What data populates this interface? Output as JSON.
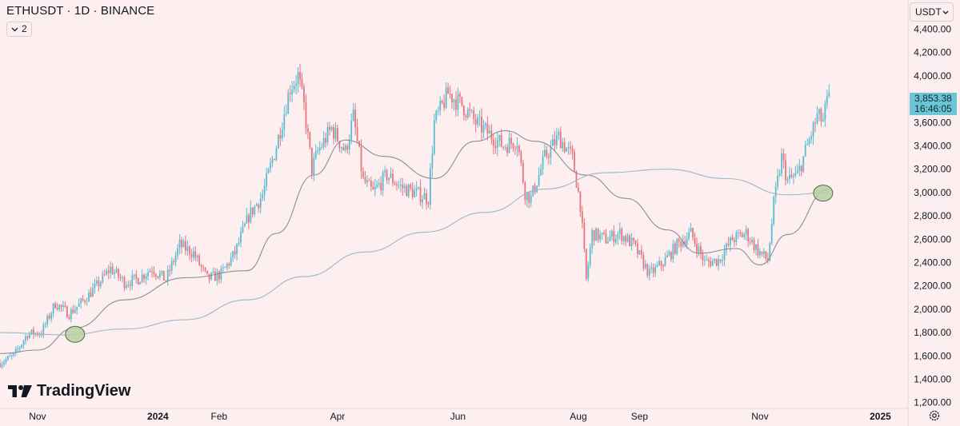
{
  "header": {
    "symbol_title": "ETHUSDT · 1D · BINANCE",
    "indicator_count": "2",
    "indicator_icon": "chevron-down-icon"
  },
  "currency": {
    "label": "USDT",
    "icon": "chevron-down-icon"
  },
  "last_price": {
    "price": "3,853.38",
    "countdown": "16:46:05",
    "color": "#6cc4d6"
  },
  "branding": {
    "logo_text": "TradingView",
    "logo_icon": "tradingview-logo-icon"
  },
  "footer": {
    "settings_icon": "gear-icon"
  },
  "colors": {
    "background": "#fdeef0",
    "up": "#5bbcd0",
    "down": "#e8757b",
    "ma_fast": "#8a8f98",
    "ma_slow": "#9bb7c9",
    "cross_marker": "#b8cfa6"
  },
  "chart_data": {
    "type": "candlestick",
    "title": "ETHUSDT · 1D · BINANCE",
    "y_axis": {
      "position": "right",
      "range": [
        1150,
        4650
      ],
      "ticks": [
        "4,400.00",
        "4,200.00",
        "4,000.00",
        "3,800.00",
        "3,600.00",
        "3,400.00",
        "3,200.00",
        "3,000.00",
        "2,800.00",
        "2,600.00",
        "2,400.00",
        "2,200.00",
        "2,000.00",
        "1,800.00",
        "1,600.00",
        "1,400.00",
        "1,200.00"
      ],
      "tick_values": [
        4400,
        4200,
        4000,
        3800,
        3600,
        3400,
        3200,
        3000,
        2800,
        2600,
        2400,
        2200,
        2000,
        1800,
        1600,
        1400,
        1200
      ]
    },
    "x_axis": {
      "range": [
        "2023-10-13",
        "2025-01-15"
      ],
      "labels": [
        {
          "label": "Nov",
          "date": "2023-11-01"
        },
        {
          "label": "2024",
          "date": "2024-01-01"
        },
        {
          "label": "Feb",
          "date": "2024-02-01"
        },
        {
          "label": "Apr",
          "date": "2024-04-01"
        },
        {
          "label": "Jun",
          "date": "2024-06-01"
        },
        {
          "label": "Aug",
          "date": "2024-08-01"
        },
        {
          "label": "Sep",
          "date": "2024-09-01"
        },
        {
          "label": "Nov",
          "date": "2024-11-01"
        },
        {
          "label": "2025",
          "date": "2025-01-01"
        }
      ]
    },
    "price_path": [
      [
        "2023-10-13",
        1540
      ],
      [
        "2023-10-20",
        1600
      ],
      [
        "2023-10-27",
        1790
      ],
      [
        "2023-11-03",
        1800
      ],
      [
        "2023-11-10",
        2050
      ],
      [
        "2023-11-17",
        1960
      ],
      [
        "2023-11-24",
        2070
      ],
      [
        "2023-12-01",
        2200
      ],
      [
        "2023-12-08",
        2350
      ],
      [
        "2023-12-15",
        2230
      ],
      [
        "2023-12-22",
        2260
      ],
      [
        "2023-12-29",
        2350
      ],
      [
        "2024-01-05",
        2250
      ],
      [
        "2024-01-12",
        2550
      ],
      [
        "2024-01-19",
        2480
      ],
      [
        "2024-01-26",
        2260
      ],
      [
        "2024-02-02",
        2300
      ],
      [
        "2024-02-09",
        2480
      ],
      [
        "2024-02-16",
        2800
      ],
      [
        "2024-02-23",
        2980
      ],
      [
        "2024-03-01",
        3400
      ],
      [
        "2024-03-08",
        3900
      ],
      [
        "2024-03-12",
        4000
      ],
      [
        "2024-03-15",
        3740
      ],
      [
        "2024-03-19",
        3200
      ],
      [
        "2024-03-22",
        3350
      ],
      [
        "2024-03-29",
        3550
      ],
      [
        "2024-04-05",
        3350
      ],
      [
        "2024-04-09",
        3650
      ],
      [
        "2024-04-14",
        3100
      ],
      [
        "2024-04-19",
        3000
      ],
      [
        "2024-04-26",
        3150
      ],
      [
        "2024-05-03",
        3050
      ],
      [
        "2024-05-10",
        3000
      ],
      [
        "2024-05-17",
        2950
      ],
      [
        "2024-05-20",
        3600
      ],
      [
        "2024-05-27",
        3850
      ],
      [
        "2024-06-03",
        3750
      ],
      [
        "2024-06-10",
        3600
      ],
      [
        "2024-06-17",
        3500
      ],
      [
        "2024-06-24",
        3400
      ],
      [
        "2024-07-01",
        3450
      ],
      [
        "2024-07-05",
        3000
      ],
      [
        "2024-07-08",
        2950
      ],
      [
        "2024-07-15",
        3300
      ],
      [
        "2024-07-22",
        3480
      ],
      [
        "2024-07-29",
        3300
      ],
      [
        "2024-08-02",
        2900
      ],
      [
        "2024-08-05",
        2250
      ],
      [
        "2024-08-08",
        2650
      ],
      [
        "2024-08-15",
        2600
      ],
      [
        "2024-08-22",
        2650
      ],
      [
        "2024-08-29",
        2550
      ],
      [
        "2024-09-06",
        2300
      ],
      [
        "2024-09-13",
        2400
      ],
      [
        "2024-09-20",
        2550
      ],
      [
        "2024-09-27",
        2650
      ],
      [
        "2024-10-04",
        2400
      ],
      [
        "2024-10-11",
        2420
      ],
      [
        "2024-10-18",
        2600
      ],
      [
        "2024-10-25",
        2650
      ],
      [
        "2024-10-31",
        2500
      ],
      [
        "2024-11-05",
        2420
      ],
      [
        "2024-11-08",
        2900
      ],
      [
        "2024-11-12",
        3300
      ],
      [
        "2024-11-15",
        3100
      ],
      [
        "2024-11-20",
        3150
      ],
      [
        "2024-11-25",
        3400
      ],
      [
        "2024-11-30",
        3650
      ],
      [
        "2024-12-03",
        3620
      ],
      [
        "2024-12-06",
        3853
      ]
    ],
    "series": [
      {
        "type": "line",
        "values": [
          [
            "2023-10-13",
            1620
          ],
          [
            "2023-11-01",
            1650
          ],
          [
            "2023-11-20",
            1840
          ],
          [
            "2023-12-15",
            2080
          ],
          [
            "2024-01-15",
            2270
          ],
          [
            "2024-02-15",
            2330
          ],
          [
            "2024-03-01",
            2650
          ],
          [
            "2024-03-20",
            3150
          ],
          [
            "2024-04-05",
            3450
          ],
          [
            "2024-04-25",
            3310
          ],
          [
            "2024-05-20",
            3120
          ],
          [
            "2024-06-10",
            3440
          ],
          [
            "2024-06-25",
            3530
          ],
          [
            "2024-07-10",
            3440
          ],
          [
            "2024-08-05",
            3150
          ],
          [
            "2024-08-25",
            2950
          ],
          [
            "2024-09-15",
            2680
          ],
          [
            "2024-10-01",
            2480
          ],
          [
            "2024-10-20",
            2520
          ],
          [
            "2024-11-01",
            2380
          ],
          [
            "2024-11-15",
            2640
          ],
          [
            "2024-12-06",
            3030
          ]
        ]
      },
      {
        "type": "line",
        "values": [
          [
            "2023-10-13",
            1800
          ],
          [
            "2023-11-15",
            1780
          ],
          [
            "2023-12-15",
            1830
          ],
          [
            "2024-01-15",
            1910
          ],
          [
            "2024-02-15",
            2080
          ],
          [
            "2024-03-15",
            2280
          ],
          [
            "2024-04-15",
            2490
          ],
          [
            "2024-05-15",
            2660
          ],
          [
            "2024-06-15",
            2830
          ],
          [
            "2024-07-15",
            3030
          ],
          [
            "2024-08-15",
            3170
          ],
          [
            "2024-09-15",
            3200
          ],
          [
            "2024-10-15",
            3120
          ],
          [
            "2024-11-15",
            2980
          ],
          [
            "2024-12-06",
            3000
          ]
        ]
      }
    ],
    "annotations": [
      {
        "type": "circle",
        "date": "2023-11-20",
        "value": 1785,
        "label": ""
      },
      {
        "type": "circle",
        "date": "2024-12-03",
        "value": 2995,
        "label": ""
      }
    ],
    "legend": "none",
    "grid": false
  }
}
